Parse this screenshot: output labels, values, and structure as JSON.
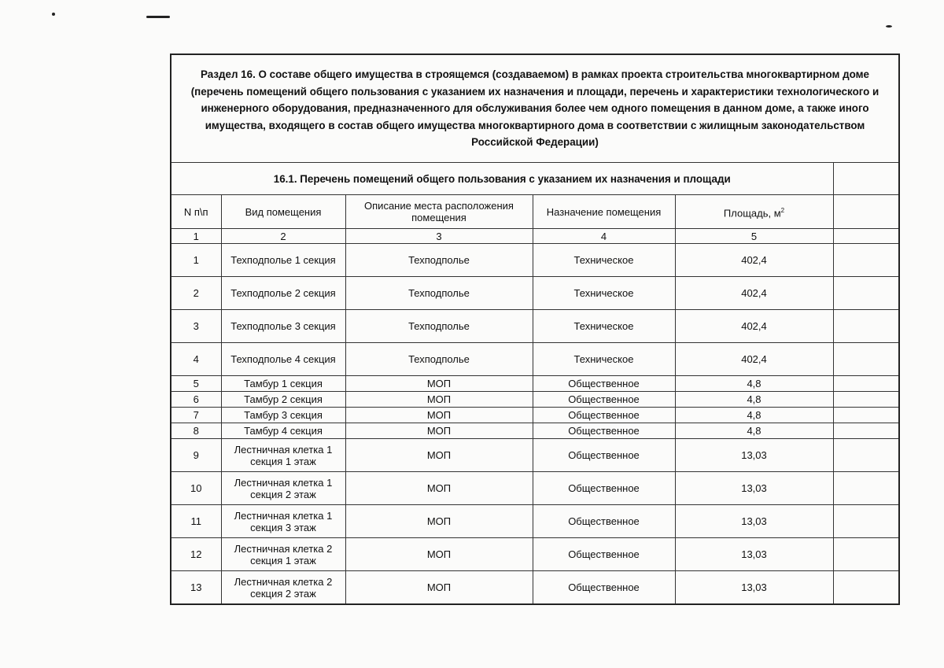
{
  "section_title": "Раздел 16. О составе общего имущества в строящемся (создаваемом) в рамках проекта строительства многоквартирном доме (перечень помещений общего пользования с указанием их назначения и площади, перечень и характеристики технологического и инженерного оборудования, предназначенного для обслуживания более чем одного помещения в данном доме, а также иного имущества, входящего в состав общего имущества многоквартирного дома в соответствии с жилищным законодательством Российской Федерации)",
  "subsection_title": "16.1. Перечень помещений общего пользования с указанием их назначения и площади",
  "columns": {
    "n": "N п\\п",
    "type": "Вид помещения",
    "location": "Описание места расположения помещения",
    "purpose": "Назначение помещения",
    "area": "Площадь, м",
    "area_sup": "2"
  },
  "column_numbers": [
    "1",
    "2",
    "3",
    "4",
    "5"
  ],
  "rows": [
    {
      "n": "1",
      "type": "Техподполье 1 секция",
      "location": "Техподполье",
      "purpose": "Техническое",
      "area": "402,4"
    },
    {
      "n": "2",
      "type": "Техподполье 2 секция",
      "location": "Техподполье",
      "purpose": "Техническое",
      "area": "402,4"
    },
    {
      "n": "3",
      "type": "Техподполье 3 секция",
      "location": "Техподполье",
      "purpose": "Техническое",
      "area": "402,4"
    },
    {
      "n": "4",
      "type": "Техподполье 4 секция",
      "location": "Техподполье",
      "purpose": "Техническое",
      "area": "402,4"
    },
    {
      "n": "5",
      "type": "Тамбур 1 секция",
      "location": "МОП",
      "purpose": "Общественное",
      "area": "4,8"
    },
    {
      "n": "6",
      "type": "Тамбур 2 секция",
      "location": "МОП",
      "purpose": "Общественное",
      "area": "4,8"
    },
    {
      "n": "7",
      "type": "Тамбур 3 секция",
      "location": "МОП",
      "purpose": "Общественное",
      "area": "4,8"
    },
    {
      "n": "8",
      "type": "Тамбур 4 секция",
      "location": "МОП",
      "purpose": "Общественное",
      "area": "4,8"
    },
    {
      "n": "9",
      "type": "Лестничная клетка 1 секция 1 этаж",
      "location": "МОП",
      "purpose": "Общественное",
      "area": "13,03"
    },
    {
      "n": "10",
      "type": "Лестничная клетка 1 секция 2 этаж",
      "location": "МОП",
      "purpose": "Общественное",
      "area": "13,03"
    },
    {
      "n": "11",
      "type": "Лестничная клетка 1 секция 3 этаж",
      "location": "МОП",
      "purpose": "Общественное",
      "area": "13,03"
    },
    {
      "n": "12",
      "type": "Лестничная клетка 2 секция 1 этаж",
      "location": "МОП",
      "purpose": "Общественное",
      "area": "13,03"
    },
    {
      "n": "13",
      "type": "Лестничная клетка 2 секция 2 этаж",
      "location": "МОП",
      "purpose": "Общественное",
      "area": "13,03"
    }
  ]
}
